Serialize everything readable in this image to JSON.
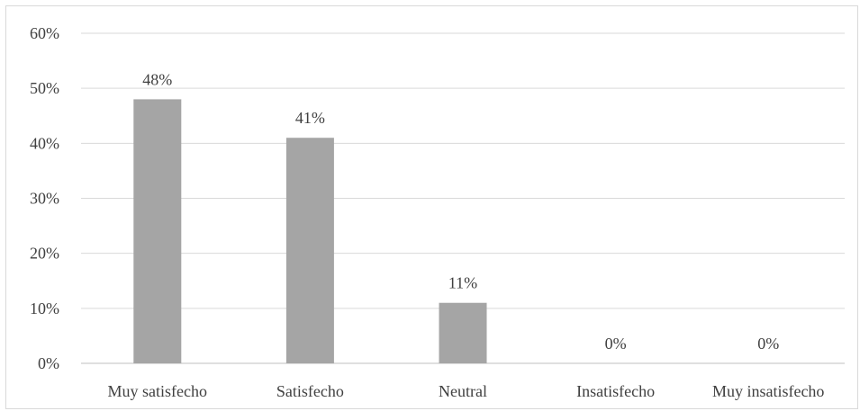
{
  "chart_data": {
    "type": "bar",
    "categories": [
      "Muy satisfecho",
      "Satisfecho",
      "Neutral",
      "Insatisfecho",
      "Muy insatisfecho"
    ],
    "values": [
      48,
      41,
      11,
      0,
      0
    ],
    "data_labels": [
      "48%",
      "41%",
      "11%",
      "0%",
      "0%"
    ],
    "ylim": [
      0,
      60
    ],
    "yticks": [
      0,
      10,
      20,
      30,
      40,
      50,
      60
    ],
    "ytick_labels": [
      "0%",
      "10%",
      "20%",
      "30%",
      "40%",
      "50%",
      "60%"
    ],
    "title": "",
    "xlabel": "",
    "ylabel": "",
    "grid": true,
    "legend": "none",
    "bar_color": "#a5a5a5"
  }
}
